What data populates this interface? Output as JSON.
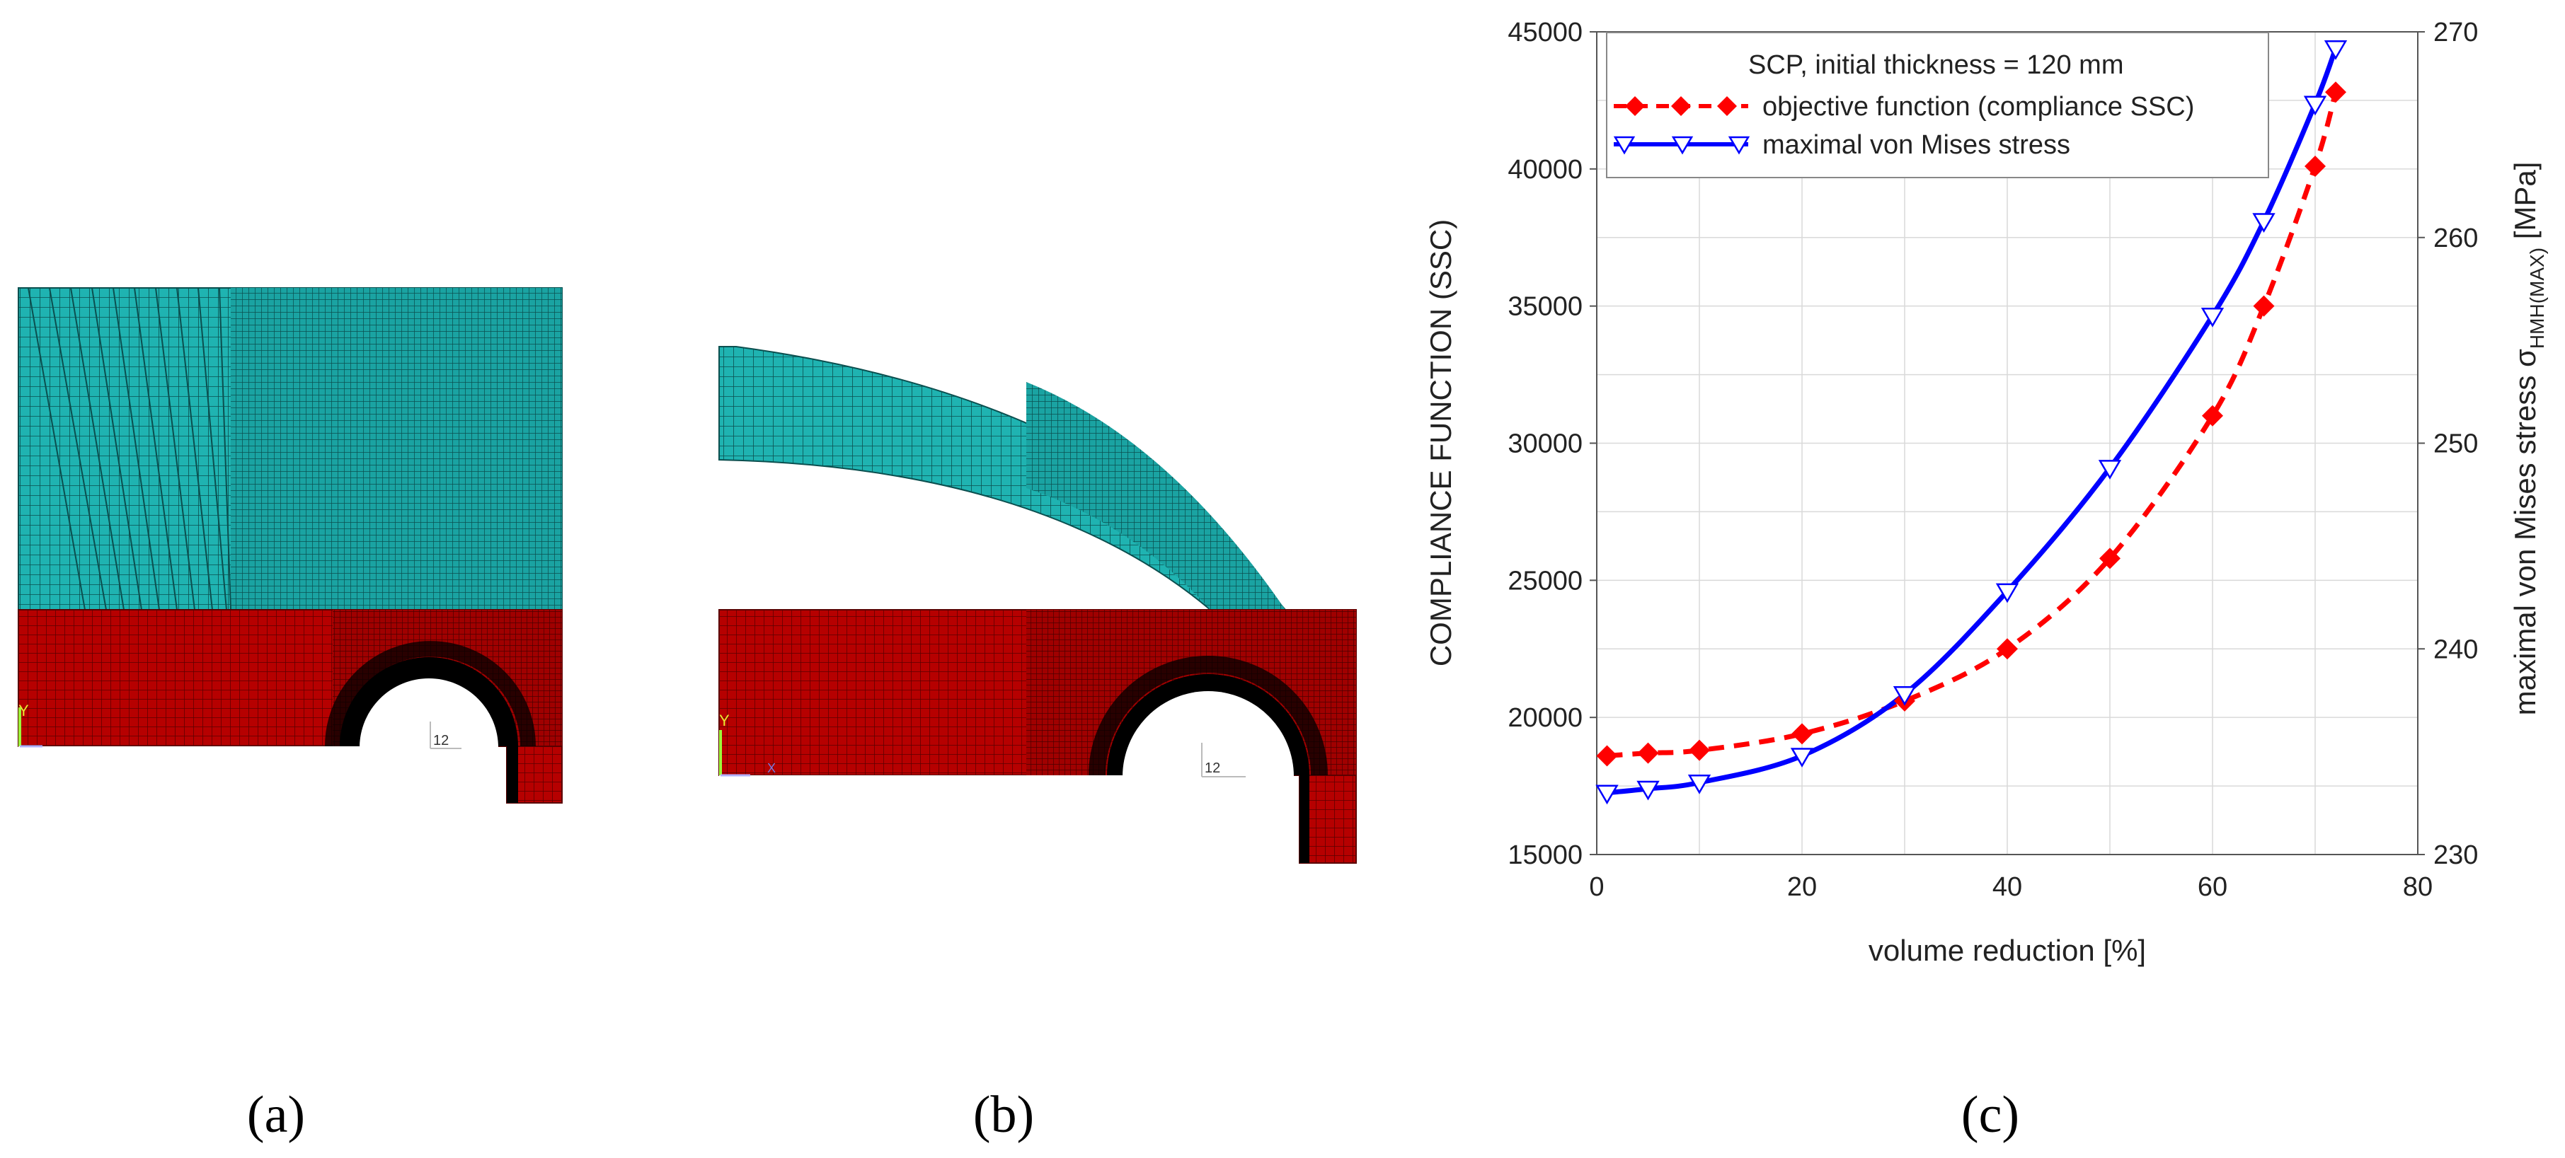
{
  "figure": {
    "captions": [
      "(a)",
      "(b)",
      "(c)"
    ],
    "mesh_a": {
      "axis_label": "Y",
      "node_label": "12"
    },
    "mesh_b": {
      "axis_label": "Y",
      "axis_label_x": "X",
      "node_label": "12"
    },
    "colors": {
      "upper_mesh": "#1fb3b1",
      "upper_mesh_line": "#0b4f4f",
      "lower_mesh": "#b60000",
      "lower_mesh_line": "#5a0000",
      "hole_fill": "#ffffff",
      "hole_border": "#000000"
    }
  },
  "chart_data": {
    "type": "line",
    "title": "",
    "xlabel": "volume reduction [%]",
    "ylabel_left": "COMPLIANCE FUNCTION (SSC)",
    "ylabel_right_prefix": "maximal von Mises stress σ",
    "ylabel_right_subscript": "HMH(MAX)",
    "ylabel_right_suffix": " [MPa]",
    "xlim": [
      0,
      80
    ],
    "ylim_left": [
      15000,
      45000
    ],
    "ylim_right": [
      230,
      270
    ],
    "x_ticks": [
      0,
      20,
      40,
      60,
      80
    ],
    "y_ticks_left": [
      15000,
      20000,
      25000,
      30000,
      35000,
      40000,
      45000
    ],
    "y_ticks_right": [
      230,
      240,
      250,
      260,
      270
    ],
    "grid": true,
    "legend": {
      "title": "SCP, initial thickness  = 120 mm",
      "placement": "top-left",
      "entries": [
        "objective function (compliance SSC)",
        "maximal von Mises stress"
      ]
    },
    "series": [
      {
        "name": "objective function (compliance SSC)",
        "axis": "left",
        "color": "#ff0000",
        "style": "dashed",
        "marker": "diamond",
        "x": [
          1,
          5,
          10,
          20,
          30,
          40,
          50,
          60,
          65,
          70,
          72
        ],
        "values": [
          18600,
          18700,
          18800,
          19400,
          20600,
          22500,
          25800,
          31000,
          35000,
          40100,
          42800
        ]
      },
      {
        "name": "maximal von Mises stress",
        "axis": "right",
        "color": "#0000ff",
        "style": "solid",
        "marker": "triangle-down",
        "x": [
          1,
          5,
          10,
          20,
          30,
          40,
          50,
          60,
          65,
          70,
          72
        ],
        "values": [
          233.0,
          233.2,
          233.5,
          234.8,
          237.8,
          242.8,
          248.8,
          256.2,
          260.8,
          266.5,
          269.2
        ]
      }
    ]
  }
}
